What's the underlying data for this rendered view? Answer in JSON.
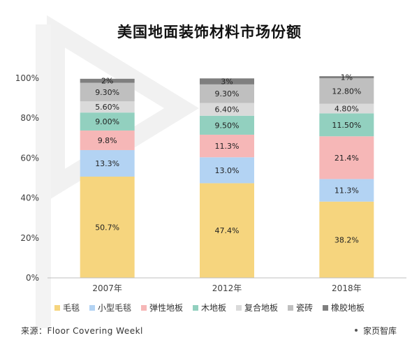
{
  "chart_data": {
    "type": "bar",
    "stacked": true,
    "title": "美国地面装饰材料市场份额",
    "categories": [
      "2007年",
      "2012年",
      "2018年"
    ],
    "ylim": [
      0,
      100
    ],
    "yticks": [
      "0%",
      "20%",
      "40%",
      "60%",
      "80%",
      "100%"
    ],
    "grid": false,
    "legend_position": "bottom",
    "series": [
      {
        "name": "毛毯",
        "values": [
          50.7,
          47.4,
          38.2
        ],
        "labels": [
          "50.7%",
          "47.4%",
          "38.2%"
        ],
        "color": "#F6D57E"
      },
      {
        "name": "小型毛毯",
        "values": [
          13.3,
          13.0,
          11.3
        ],
        "labels": [
          "13.3%",
          "13.0%",
          "11.3%"
        ],
        "color": "#B3D3F3"
      },
      {
        "name": "弹性地板",
        "values": [
          9.8,
          11.3,
          21.4
        ],
        "labels": [
          "9.8%",
          "11.3%",
          "21.4%"
        ],
        "color": "#F6B7B7"
      },
      {
        "name": "木地板",
        "values": [
          9.0,
          9.5,
          11.5
        ],
        "labels": [
          "9.00%",
          "9.50%",
          "11.50%"
        ],
        "color": "#92D0BF"
      },
      {
        "name": "复合地板",
        "values": [
          5.6,
          6.4,
          4.8
        ],
        "labels": [
          "5.60%",
          "6.40%",
          "4.80%"
        ],
        "color": "#DADADA"
      },
      {
        "name": "瓷砖",
        "values": [
          9.3,
          9.3,
          12.8
        ],
        "labels": [
          "9.30%",
          "9.30%",
          "12.80%"
        ],
        "color": "#BFBFBF"
      },
      {
        "name": "橡胶地板",
        "values": [
          2,
          3,
          1
        ],
        "labels": [
          "2%",
          "3%",
          "1%"
        ],
        "color": "#7F7F7F"
      }
    ]
  },
  "source": "来源：Floor Covering Weekl",
  "brand": "家页智库"
}
